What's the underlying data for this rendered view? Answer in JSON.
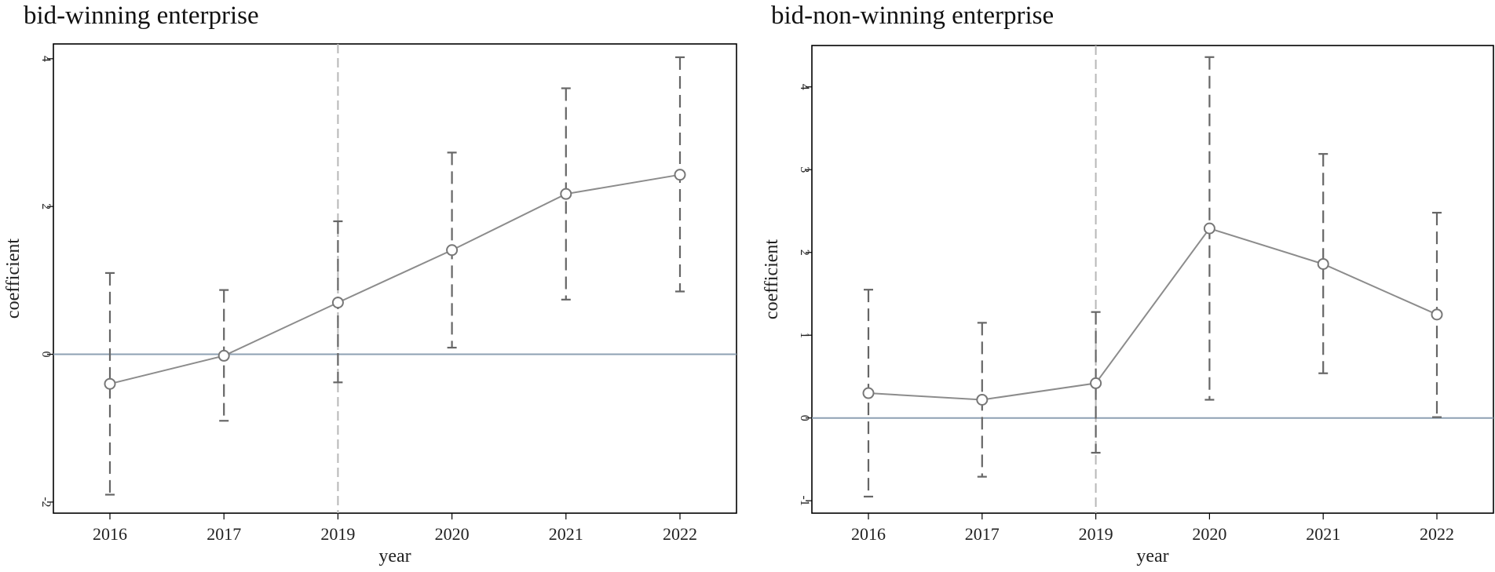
{
  "chart_data": [
    {
      "type": "line",
      "title": "bid-winning enterprise",
      "xlabel": "year",
      "ylabel": "coefficient",
      "categories": [
        "2016",
        "2017",
        "2019",
        "2020",
        "2021",
        "2022"
      ],
      "yticks": [
        "-2",
        "0",
        "2",
        "4"
      ],
      "ylim": [
        -2.15,
        4.2
      ],
      "reference_line_y": 0,
      "vertical_reference_x": "2019",
      "series": [
        {
          "values": [
            -0.4,
            -0.02,
            0.7,
            1.41,
            2.17,
            2.43
          ],
          "ci_lower": [
            -1.9,
            -0.9,
            -0.38,
            0.09,
            0.74,
            0.85
          ],
          "ci_upper": [
            1.1,
            0.87,
            1.8,
            2.73,
            3.6,
            4.02
          ]
        }
      ],
      "colors": {
        "line": "#8c8c8c",
        "errorbar": "#666666",
        "zero_line": "#8da0b3",
        "vline": "#b8b8b8"
      }
    },
    {
      "type": "line",
      "title": "bid-non-winning enterprise",
      "xlabel": "year",
      "ylabel": "coefficient",
      "categories": [
        "2016",
        "2017",
        "2019",
        "2020",
        "2021",
        "2022"
      ],
      "yticks": [
        "-1",
        "0",
        "1",
        "2",
        "3",
        "4"
      ],
      "ylim": [
        -1.15,
        4.5
      ],
      "reference_line_y": 0,
      "vertical_reference_x": "2019",
      "series": [
        {
          "values": [
            0.3,
            0.22,
            0.42,
            2.29,
            1.86,
            1.25
          ],
          "ci_lower": [
            -0.95,
            -0.71,
            -0.42,
            0.22,
            0.54,
            0.01
          ],
          "ci_upper": [
            1.55,
            1.15,
            1.28,
            4.36,
            3.19,
            2.48
          ]
        }
      ],
      "colors": {
        "line": "#8c8c8c",
        "errorbar": "#666666",
        "zero_line": "#8da0b3",
        "vline": "#b8b8b8"
      }
    }
  ]
}
